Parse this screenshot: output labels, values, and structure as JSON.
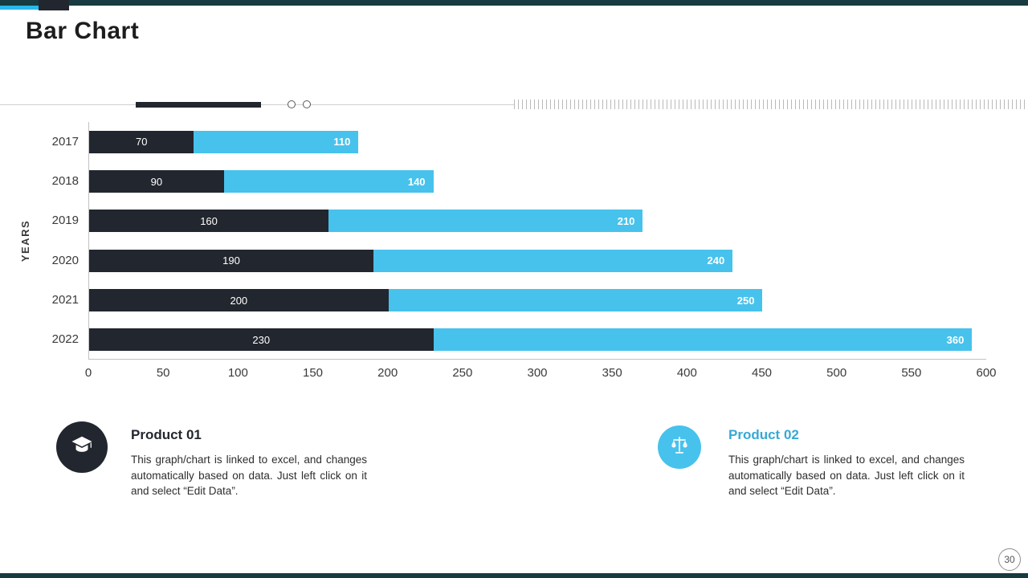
{
  "slide": {
    "title": "Bar Chart",
    "page_number": "30"
  },
  "chart_data": {
    "type": "bar",
    "orientation": "horizontal",
    "stacked": true,
    "title": "",
    "xlabel": "",
    "ylabel": "YEARS",
    "categories": [
      "2017",
      "2018",
      "2019",
      "2020",
      "2021",
      "2022"
    ],
    "series": [
      {
        "name": "Product 01",
        "color": "#22262e",
        "values": [
          70,
          90,
          160,
          190,
          200,
          230
        ]
      },
      {
        "name": "Product 02",
        "color": "#47c2ec",
        "values": [
          110,
          140,
          210,
          240,
          250,
          360
        ]
      }
    ],
    "xlim": [
      0,
      600
    ],
    "xticks": [
      0,
      50,
      100,
      150,
      200,
      250,
      300,
      350,
      400,
      450,
      500,
      550,
      600
    ],
    "grid": false,
    "legend": "none"
  },
  "products": [
    {
      "title": "Product 01",
      "icon": "graduation-cap-icon",
      "accent": "#22262e",
      "description": "This graph/chart is linked to excel, and changes automatically based on data. Just left click on it and select “Edit Data”."
    },
    {
      "title": "Product 02",
      "icon": "scales-icon",
      "accent": "#47c2ec",
      "description": "This graph/chart is linked to excel, and changes automatically based on data. Just left click on it and select “Edit Data”."
    }
  ]
}
